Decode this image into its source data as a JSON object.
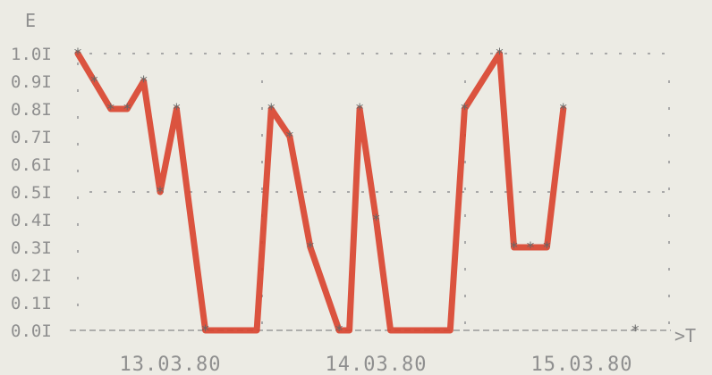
{
  "chart_data": {
    "type": "line",
    "ylabel": "E",
    "xlabel": "T",
    "ylim": [
      0,
      1.0
    ],
    "yticks": [
      "0.0I",
      "0.1I",
      "0.2I",
      "0.3I",
      "0.4I",
      "0.5I",
      "0.6I",
      "0.7I",
      "0.8I",
      "0.9I",
      "1.0I"
    ],
    "date_labels": [
      "13.03.80",
      "14.03.80",
      "15.03.80"
    ],
    "x_axis_arrow": ">T",
    "grid": "dotted",
    "series": [
      {
        "values": [
          {
            "x": 0.0,
            "y": 1.0
          },
          {
            "x": 0.08,
            "y": 0.9
          },
          {
            "x": 0.16,
            "y": 0.8
          },
          {
            "x": 0.24,
            "y": 0.8
          },
          {
            "x": 0.32,
            "y": 0.9
          },
          {
            "x": 0.4,
            "y": 0.5
          },
          {
            "x": 0.48,
            "y": 0.8
          },
          {
            "x": 0.62,
            "y": 0.0
          },
          {
            "x": 0.87,
            "y": 0.0
          },
          {
            "x": 0.94,
            "y": 0.8
          },
          {
            "x": 1.03,
            "y": 0.7
          },
          {
            "x": 1.13,
            "y": 0.3
          },
          {
            "x": 1.27,
            "y": 0.0
          },
          {
            "x": 1.32,
            "y": 0.0
          },
          {
            "x": 1.37,
            "y": 0.8
          },
          {
            "x": 1.45,
            "y": 0.4
          },
          {
            "x": 1.52,
            "y": 0.0
          },
          {
            "x": 1.81,
            "y": 0.0
          },
          {
            "x": 1.88,
            "y": 0.8
          },
          {
            "x": 2.05,
            "y": 1.0
          },
          {
            "x": 2.12,
            "y": 0.3
          },
          {
            "x": 2.2,
            "y": 0.3
          },
          {
            "x": 2.28,
            "y": 0.3
          },
          {
            "x": 2.36,
            "y": 0.8
          }
        ],
        "color": "#d9422c"
      }
    ],
    "markers": [
      {
        "x": 0.0,
        "y": 1.0
      },
      {
        "x": 0.08,
        "y": 0.9
      },
      {
        "x": 0.16,
        "y": 0.8
      },
      {
        "x": 0.24,
        "y": 0.8
      },
      {
        "x": 0.32,
        "y": 0.9
      },
      {
        "x": 0.4,
        "y": 0.5
      },
      {
        "x": 0.48,
        "y": 0.8
      },
      {
        "x": 0.62,
        "y": 0.0
      },
      {
        "x": 0.94,
        "y": 0.8
      },
      {
        "x": 1.03,
        "y": 0.7
      },
      {
        "x": 1.13,
        "y": 0.3
      },
      {
        "x": 1.27,
        "y": 0.0
      },
      {
        "x": 1.37,
        "y": 0.8
      },
      {
        "x": 1.45,
        "y": 0.4
      },
      {
        "x": 1.88,
        "y": 0.8
      },
      {
        "x": 2.05,
        "y": 1.0
      },
      {
        "x": 2.12,
        "y": 0.3
      },
      {
        "x": 2.2,
        "y": 0.3
      },
      {
        "x": 2.28,
        "y": 0.3
      },
      {
        "x": 2.36,
        "y": 0.8
      },
      {
        "x": 2.71,
        "y": 0.0
      }
    ],
    "marker_symbol": "*",
    "x_axis_end": 2.88
  },
  "colors": {
    "background": "#ecebe4",
    "line": "#d9422c",
    "text": "#8f8f8f",
    "grid": "#a9a9a9"
  }
}
